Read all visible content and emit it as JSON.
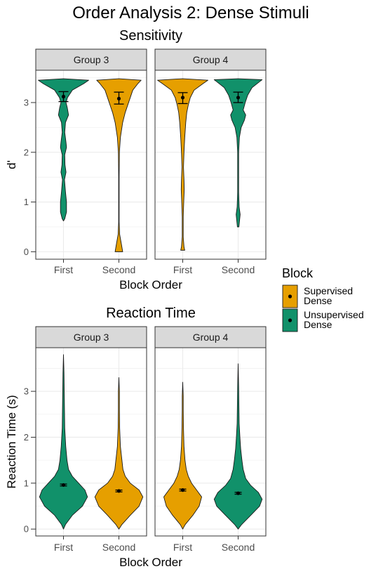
{
  "title": "Order Analysis 2: Dense Stimuli",
  "colors": {
    "supervised": "#E69F00",
    "unsupervised": "#11916A",
    "strip_fill": "#D9D9D9",
    "grid": "#EBEBEB",
    "axis_text": "#4D4D4D"
  },
  "legend": {
    "title": "Block",
    "entries": [
      {
        "key": "supervised",
        "line1": "Supervised",
        "line2": "Dense"
      },
      {
        "key": "unsupervised",
        "line1": "Unsupervised",
        "line2": "Dense"
      }
    ]
  },
  "chart_data": [
    {
      "type": "violin",
      "title": "Sensitivity",
      "xlabel": "Block Order",
      "ylabel": "d'",
      "ylim": [
        -0.15,
        3.65
      ],
      "yticks": [
        0,
        1,
        2,
        3
      ],
      "categories": [
        "First",
        "Second"
      ],
      "facets": [
        {
          "label": "Group 3",
          "violins": [
            {
              "category": "First",
              "block": "unsupervised",
              "mean": 3.12,
              "err_low": 3.02,
              "err_high": 3.22,
              "profile": [
                [
                  0.62,
                  0
                ],
                [
                  0.66,
                  0.05
                ],
                [
                  0.8,
                  0.12
                ],
                [
                  1.0,
                  0.12
                ],
                [
                  1.2,
                  0.08
                ],
                [
                  1.45,
                  0.04
                ],
                [
                  1.6,
                  0.1
                ],
                [
                  1.75,
                  0.06
                ],
                [
                  1.95,
                  0.05
                ],
                [
                  2.1,
                  0.12
                ],
                [
                  2.2,
                  0.1
                ],
                [
                  2.4,
                  0.05
                ],
                [
                  2.6,
                  0.08
                ],
                [
                  2.75,
                  0.2
                ],
                [
                  2.9,
                  0.15
                ],
                [
                  3.0,
                  0.1
                ],
                [
                  3.1,
                  0.16
                ],
                [
                  3.25,
                  0.35
                ],
                [
                  3.38,
                  0.8
                ],
                [
                  3.45,
                  1.0
                ],
                [
                  3.48,
                  0
                ]
              ]
            },
            {
              "category": "Second",
              "block": "supervised",
              "mean": 3.08,
              "err_low": 2.97,
              "err_high": 3.21,
              "profile": [
                [
                  0,
                  0.15
                ],
                [
                  0.15,
                  0.1
                ],
                [
                  0.35,
                  0.03
                ],
                [
                  0.6,
                  0.01
                ],
                [
                  1.0,
                  0.01
                ],
                [
                  1.5,
                  0.01
                ],
                [
                  2.0,
                  0.02
                ],
                [
                  2.3,
                  0.06
                ],
                [
                  2.6,
                  0.15
                ],
                [
                  2.8,
                  0.25
                ],
                [
                  2.95,
                  0.35
                ],
                [
                  3.1,
                  0.45
                ],
                [
                  3.25,
                  0.55
                ],
                [
                  3.38,
                  0.75
                ],
                [
                  3.45,
                  0.88
                ],
                [
                  3.48,
                  0
                ]
              ]
            }
          ]
        },
        {
          "label": "Group 4",
          "violins": [
            {
              "category": "First",
              "block": "supervised",
              "mean": 3.1,
              "err_low": 2.98,
              "err_high": 3.2,
              "profile": [
                [
                  0.03,
                  0.08
                ],
                [
                  0.1,
                  0.05
                ],
                [
                  0.3,
                  0.02
                ],
                [
                  0.7,
                  0.02
                ],
                [
                  1.0,
                  0.04
                ],
                [
                  1.25,
                  0.06
                ],
                [
                  1.45,
                  0.05
                ],
                [
                  1.7,
                  0.03
                ],
                [
                  2.0,
                  0.05
                ],
                [
                  2.3,
                  0.08
                ],
                [
                  2.6,
                  0.12
                ],
                [
                  2.8,
                  0.16
                ],
                [
                  2.95,
                  0.22
                ],
                [
                  3.1,
                  0.3
                ],
                [
                  3.25,
                  0.45
                ],
                [
                  3.38,
                  0.8
                ],
                [
                  3.45,
                  1.0
                ],
                [
                  3.48,
                  0
                ]
              ]
            },
            {
              "category": "Second",
              "block": "unsupervised",
              "mean": 3.1,
              "err_low": 3.0,
              "err_high": 3.21,
              "profile": [
                [
                  0.5,
                  0.03
                ],
                [
                  0.6,
                  0.05
                ],
                [
                  0.75,
                  0.08
                ],
                [
                  0.9,
                  0.04
                ],
                [
                  1.2,
                  0.02
                ],
                [
                  1.6,
                  0.02
                ],
                [
                  2.0,
                  0.02
                ],
                [
                  2.3,
                  0.05
                ],
                [
                  2.5,
                  0.12
                ],
                [
                  2.65,
                  0.25
                ],
                [
                  2.75,
                  0.3
                ],
                [
                  2.85,
                  0.2
                ],
                [
                  3.0,
                  0.28
                ],
                [
                  3.15,
                  0.38
                ],
                [
                  3.3,
                  0.55
                ],
                [
                  3.4,
                  0.8
                ],
                [
                  3.46,
                  0.95
                ],
                [
                  3.48,
                  0
                ]
              ]
            }
          ]
        }
      ]
    },
    {
      "type": "violin",
      "title": "Reaction Time",
      "xlabel": "Block Order",
      "ylabel": "Reaction Time (s)",
      "ylim": [
        -0.15,
        3.95
      ],
      "yticks": [
        0,
        1,
        2,
        3
      ],
      "categories": [
        "First",
        "Second"
      ],
      "facets": [
        {
          "label": "Group 3",
          "violins": [
            {
              "category": "First",
              "block": "unsupervised",
              "mean": 0.96,
              "err_low": 0.94,
              "err_high": 0.98,
              "profile": [
                [
                  0,
                  0
                ],
                [
                  0.1,
                  0.08
                ],
                [
                  0.3,
                  0.35
                ],
                [
                  0.5,
                  0.75
                ],
                [
                  0.7,
                  0.95
                ],
                [
                  0.85,
                  0.85
                ],
                [
                  1.0,
                  0.6
                ],
                [
                  1.15,
                  0.35
                ],
                [
                  1.3,
                  0.2
                ],
                [
                  1.5,
                  0.14
                ],
                [
                  1.8,
                  0.09
                ],
                [
                  2.2,
                  0.05
                ],
                [
                  2.6,
                  0.04
                ],
                [
                  3.0,
                  0.03
                ],
                [
                  3.4,
                  0.02
                ],
                [
                  3.8,
                  0
                ]
              ]
            },
            {
              "category": "Second",
              "block": "supervised",
              "mean": 0.83,
              "err_low": 0.81,
              "err_high": 0.85,
              "profile": [
                [
                  0,
                  0
                ],
                [
                  0.1,
                  0.12
                ],
                [
                  0.3,
                  0.45
                ],
                [
                  0.5,
                  0.8
                ],
                [
                  0.7,
                  0.95
                ],
                [
                  0.85,
                  0.8
                ],
                [
                  1.0,
                  0.45
                ],
                [
                  1.15,
                  0.25
                ],
                [
                  1.3,
                  0.16
                ],
                [
                  1.5,
                  0.12
                ],
                [
                  1.8,
                  0.06
                ],
                [
                  2.2,
                  0.03
                ],
                [
                  2.6,
                  0.02
                ],
                [
                  3.0,
                  0.02
                ],
                [
                  3.3,
                  0
                ]
              ]
            }
          ]
        },
        {
          "label": "Group 4",
          "violins": [
            {
              "category": "First",
              "block": "supervised",
              "mean": 0.85,
              "err_low": 0.83,
              "err_high": 0.87,
              "profile": [
                [
                  0,
                  0
                ],
                [
                  0.1,
                  0.1
                ],
                [
                  0.3,
                  0.4
                ],
                [
                  0.5,
                  0.65
                ],
                [
                  0.7,
                  0.75
                ],
                [
                  0.85,
                  0.55
                ],
                [
                  1.0,
                  0.35
                ],
                [
                  1.15,
                  0.22
                ],
                [
                  1.3,
                  0.14
                ],
                [
                  1.5,
                  0.09
                ],
                [
                  1.8,
                  0.05
                ],
                [
                  2.2,
                  0.03
                ],
                [
                  2.6,
                  0.02
                ],
                [
                  2.9,
                  0.02
                ],
                [
                  3.2,
                  0
                ]
              ]
            },
            {
              "category": "Second",
              "block": "unsupervised",
              "mean": 0.78,
              "err_low": 0.76,
              "err_high": 0.8,
              "profile": [
                [
                  0,
                  0
                ],
                [
                  0.1,
                  0.14
                ],
                [
                  0.3,
                  0.5
                ],
                [
                  0.5,
                  0.85
                ],
                [
                  0.65,
                  0.95
                ],
                [
                  0.8,
                  0.8
                ],
                [
                  0.95,
                  0.5
                ],
                [
                  1.1,
                  0.3
                ],
                [
                  1.3,
                  0.2
                ],
                [
                  1.5,
                  0.15
                ],
                [
                  1.75,
                  0.1
                ],
                [
                  2.0,
                  0.07
                ],
                [
                  2.3,
                  0.04
                ],
                [
                  2.7,
                  0.03
                ],
                [
                  3.1,
                  0.02
                ],
                [
                  3.6,
                  0
                ]
              ]
            }
          ]
        }
      ]
    }
  ]
}
